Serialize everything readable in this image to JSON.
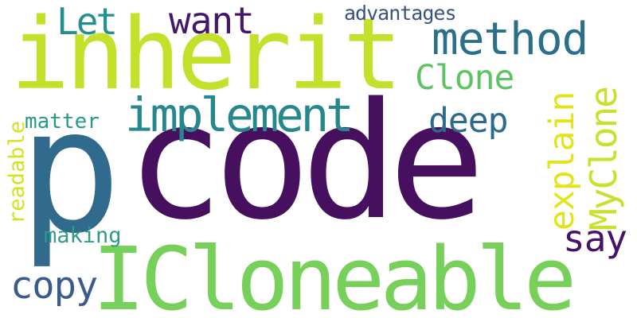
{
  "words": [
    {
      "key": "code",
      "text": "code",
      "color": "#46105f",
      "orientation": "horizontal"
    },
    {
      "key": "p",
      "text": "p",
      "color": "#306a8c",
      "orientation": "horizontal"
    },
    {
      "key": "inherit",
      "text": "inherit",
      "color": "#c5e02a",
      "orientation": "horizontal"
    },
    {
      "key": "icloneable",
      "text": "ICloneable",
      "color": "#77d05a",
      "orientation": "horizontal"
    },
    {
      "key": "method",
      "text": "method",
      "color": "#2b6f8b",
      "orientation": "horizontal"
    },
    {
      "key": "implement",
      "text": "implement",
      "color": "#26888d",
      "orientation": "horizontal"
    },
    {
      "key": "want",
      "text": "want",
      "color": "#45176a",
      "orientation": "horizontal"
    },
    {
      "key": "let",
      "text": "Let",
      "color": "#23908d",
      "orientation": "horizontal"
    },
    {
      "key": "advantages",
      "text": "advantages",
      "color": "#3a527e",
      "orientation": "horizontal"
    },
    {
      "key": "clone",
      "text": "Clone",
      "color": "#5cc463",
      "orientation": "horizontal"
    },
    {
      "key": "deep",
      "text": "deep",
      "color": "#2d6b8d",
      "orientation": "horizontal"
    },
    {
      "key": "explain",
      "text": "explain",
      "color": "#e3e319",
      "orientation": "vertical"
    },
    {
      "key": "myclone",
      "text": "MyClone",
      "color": "#c9e02e",
      "orientation": "vertical"
    },
    {
      "key": "matter",
      "text": "matter",
      "color": "#27998a",
      "orientation": "horizontal"
    },
    {
      "key": "readable",
      "text": "readable",
      "color": "#d6e11f",
      "orientation": "vertical"
    },
    {
      "key": "say",
      "text": "say",
      "color": "#471267",
      "orientation": "horizontal"
    },
    {
      "key": "making",
      "text": "making",
      "color": "#2e9b8a",
      "orientation": "horizontal"
    },
    {
      "key": "copy",
      "text": "copy",
      "color": "#3b5c8b",
      "orientation": "horizontal"
    }
  ]
}
